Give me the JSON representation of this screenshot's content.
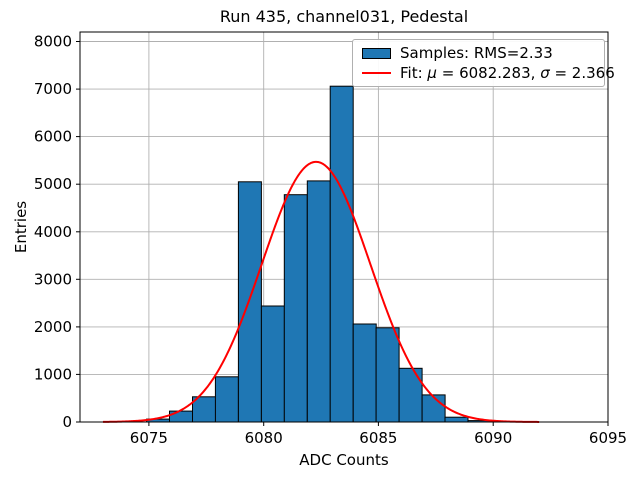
{
  "chart_data": {
    "type": "histogram",
    "title": "Run 435, channel031, Pedestal",
    "xlabel": "ADC Counts",
    "ylabel": "Entries",
    "xlim": [
      6072,
      6095
    ],
    "ylim": [
      0,
      8200
    ],
    "xticks": [
      6075,
      6080,
      6085,
      6090,
      6095
    ],
    "yticks": [
      0,
      1000,
      2000,
      3000,
      4000,
      5000,
      6000,
      7000,
      8000
    ],
    "grid": true,
    "legend_position": "upper right",
    "rms": 2.33,
    "bins": {
      "values": [
        6075,
        6076,
        6077,
        6078,
        6079,
        6080,
        6081,
        6082,
        6083,
        6084,
        6085,
        6086,
        6087,
        6088,
        6089
      ],
      "counts": [
        60,
        230,
        530,
        950,
        5050,
        2440,
        4780,
        5070,
        7060,
        2060,
        1980,
        1130,
        570,
        100,
        30
      ],
      "bin_width": 1,
      "bin_offset": -0.1
    },
    "fit_curve": {
      "type": "gaussian",
      "mu": 6082.283,
      "sigma": 2.366,
      "peak": 5470,
      "x_range": [
        6073,
        6092
      ]
    },
    "colors": {
      "bar_fill": "#1f77b4",
      "bar_edge": "#000000",
      "fit_line": "#ff0000",
      "grid": "#b0b0b0",
      "axis": "#000000",
      "text": "#000000",
      "legend_border": "#b0b0b0"
    }
  },
  "legend": {
    "entries": [
      {
        "key": "histogram-swatch",
        "label": "Samples: RMS=2.33"
      },
      {
        "key": "fit-line",
        "label_prefix": "Fit: ",
        "mu_symbol": "μ",
        "mu_rest": " = 6082.283, ",
        "sigma_symbol": "σ",
        "sigma_rest": " = 2.366"
      }
    ]
  }
}
